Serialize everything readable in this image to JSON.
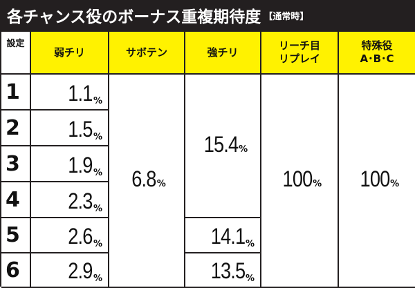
{
  "title": {
    "main": "各チャンス役のボーナス重複期待度",
    "sub": "【通常時】"
  },
  "headers": {
    "setting": "設定",
    "col1": "弱チリ",
    "col2": "サボテン",
    "col3": "強チリ",
    "col4_line1": "リーチ目",
    "col4_line2": "リプレイ",
    "col5_line1": "特殊役",
    "col5_line2": "A･B･C"
  },
  "rows": [
    {
      "setting": "1",
      "weak_chiri": "1.1"
    },
    {
      "setting": "2",
      "weak_chiri": "1.5"
    },
    {
      "setting": "3",
      "weak_chiri": "1.9"
    },
    {
      "setting": "4",
      "weak_chiri": "2.3"
    },
    {
      "setting": "5",
      "weak_chiri": "2.6"
    },
    {
      "setting": "6",
      "weak_chiri": "2.9"
    }
  ],
  "saboten": "6.8",
  "strong_chiri": {
    "settings_1_4": "15.4",
    "setting_5": "14.1",
    "setting_6": "13.5"
  },
  "reach_replay": "100",
  "special": "100",
  "percent_sign": "%",
  "colors": {
    "header_bg": "#fff200",
    "title_bg": "#231f20",
    "border": "#231f20"
  }
}
